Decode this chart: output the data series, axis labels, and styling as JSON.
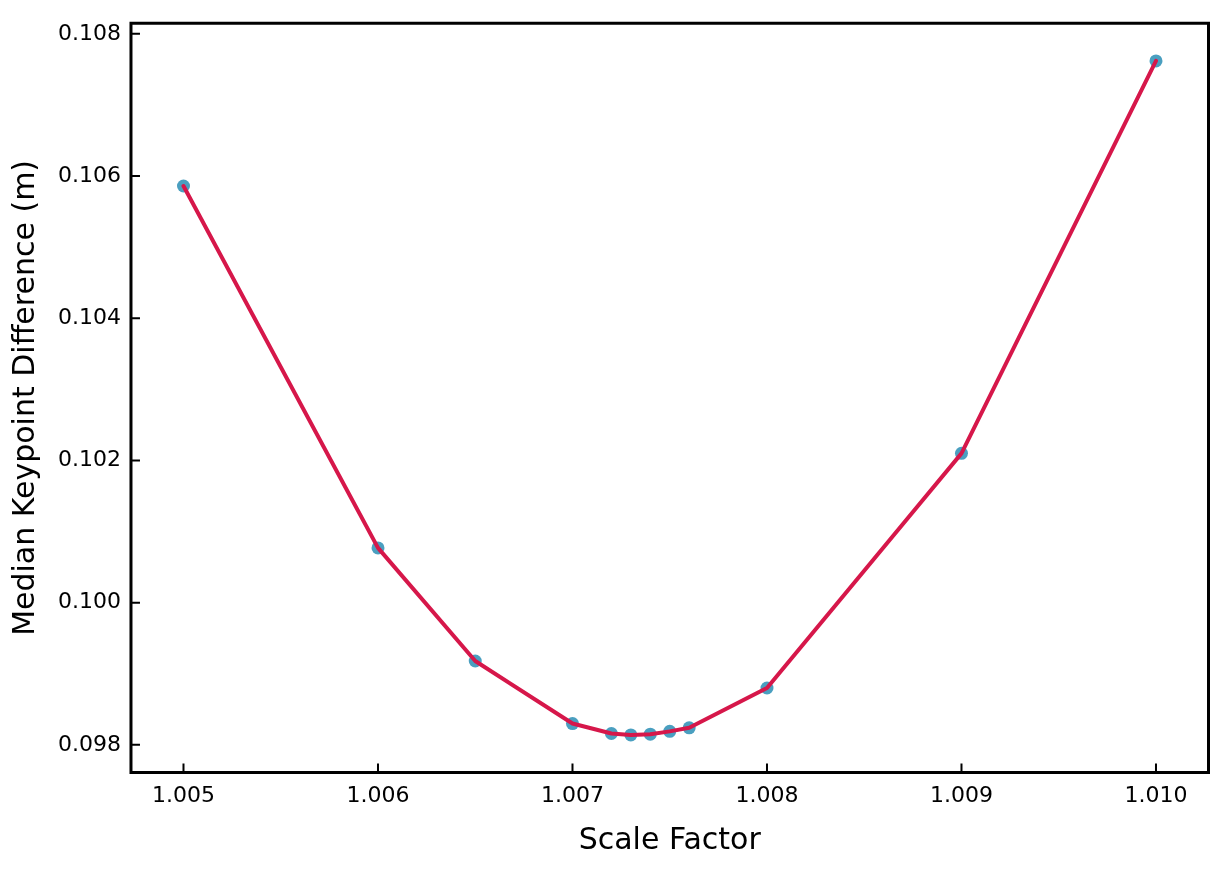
{
  "chart_data": {
    "type": "line",
    "xlabel": "Scale Factor",
    "ylabel": "Median Keypoint Difference (m)",
    "x": [
      1.005,
      1.006,
      1.0065,
      1.007,
      1.0072,
      1.0073,
      1.0074,
      1.0075,
      1.0076,
      1.008,
      1.009,
      1.01
    ],
    "series": [
      {
        "color": "#d6174a",
        "marker": "none",
        "values": [
          0.10586,
          0.10077,
          0.09918,
          0.0983,
          0.09816,
          0.09814,
          0.09815,
          0.09819,
          0.09824,
          0.0988,
          0.1021,
          0.10762
        ]
      },
      {
        "type": "scatter",
        "color": "#4a9fc0",
        "marker": "circle",
        "values": [
          0.10586,
          0.10077,
          0.09918,
          0.0983,
          0.09816,
          0.09814,
          0.09815,
          0.09819,
          0.09824,
          0.0988,
          0.1021,
          0.10762
        ]
      }
    ],
    "xlim": [
      1.00473,
      1.01027
    ],
    "xticks": [
      {
        "value": 1.005,
        "label": "1.005"
      },
      {
        "value": 1.006,
        "label": "1.006"
      },
      {
        "value": 1.007,
        "label": "1.007"
      },
      {
        "value": 1.008,
        "label": "1.008"
      },
      {
        "value": 1.009,
        "label": "1.009"
      },
      {
        "value": 1.01,
        "label": "1.010"
      }
    ],
    "ylim": [
      0.09761,
      0.10815
    ],
    "yticks": [
      {
        "value": 0.098,
        "label": "0.098"
      },
      {
        "value": 0.1,
        "label": "0.100"
      },
      {
        "value": 0.102,
        "label": "0.102"
      },
      {
        "value": 0.104,
        "label": "0.104"
      },
      {
        "value": 0.106,
        "label": "0.106"
      },
      {
        "value": 0.108,
        "label": "0.108"
      }
    ],
    "grid": false,
    "legend": false
  }
}
